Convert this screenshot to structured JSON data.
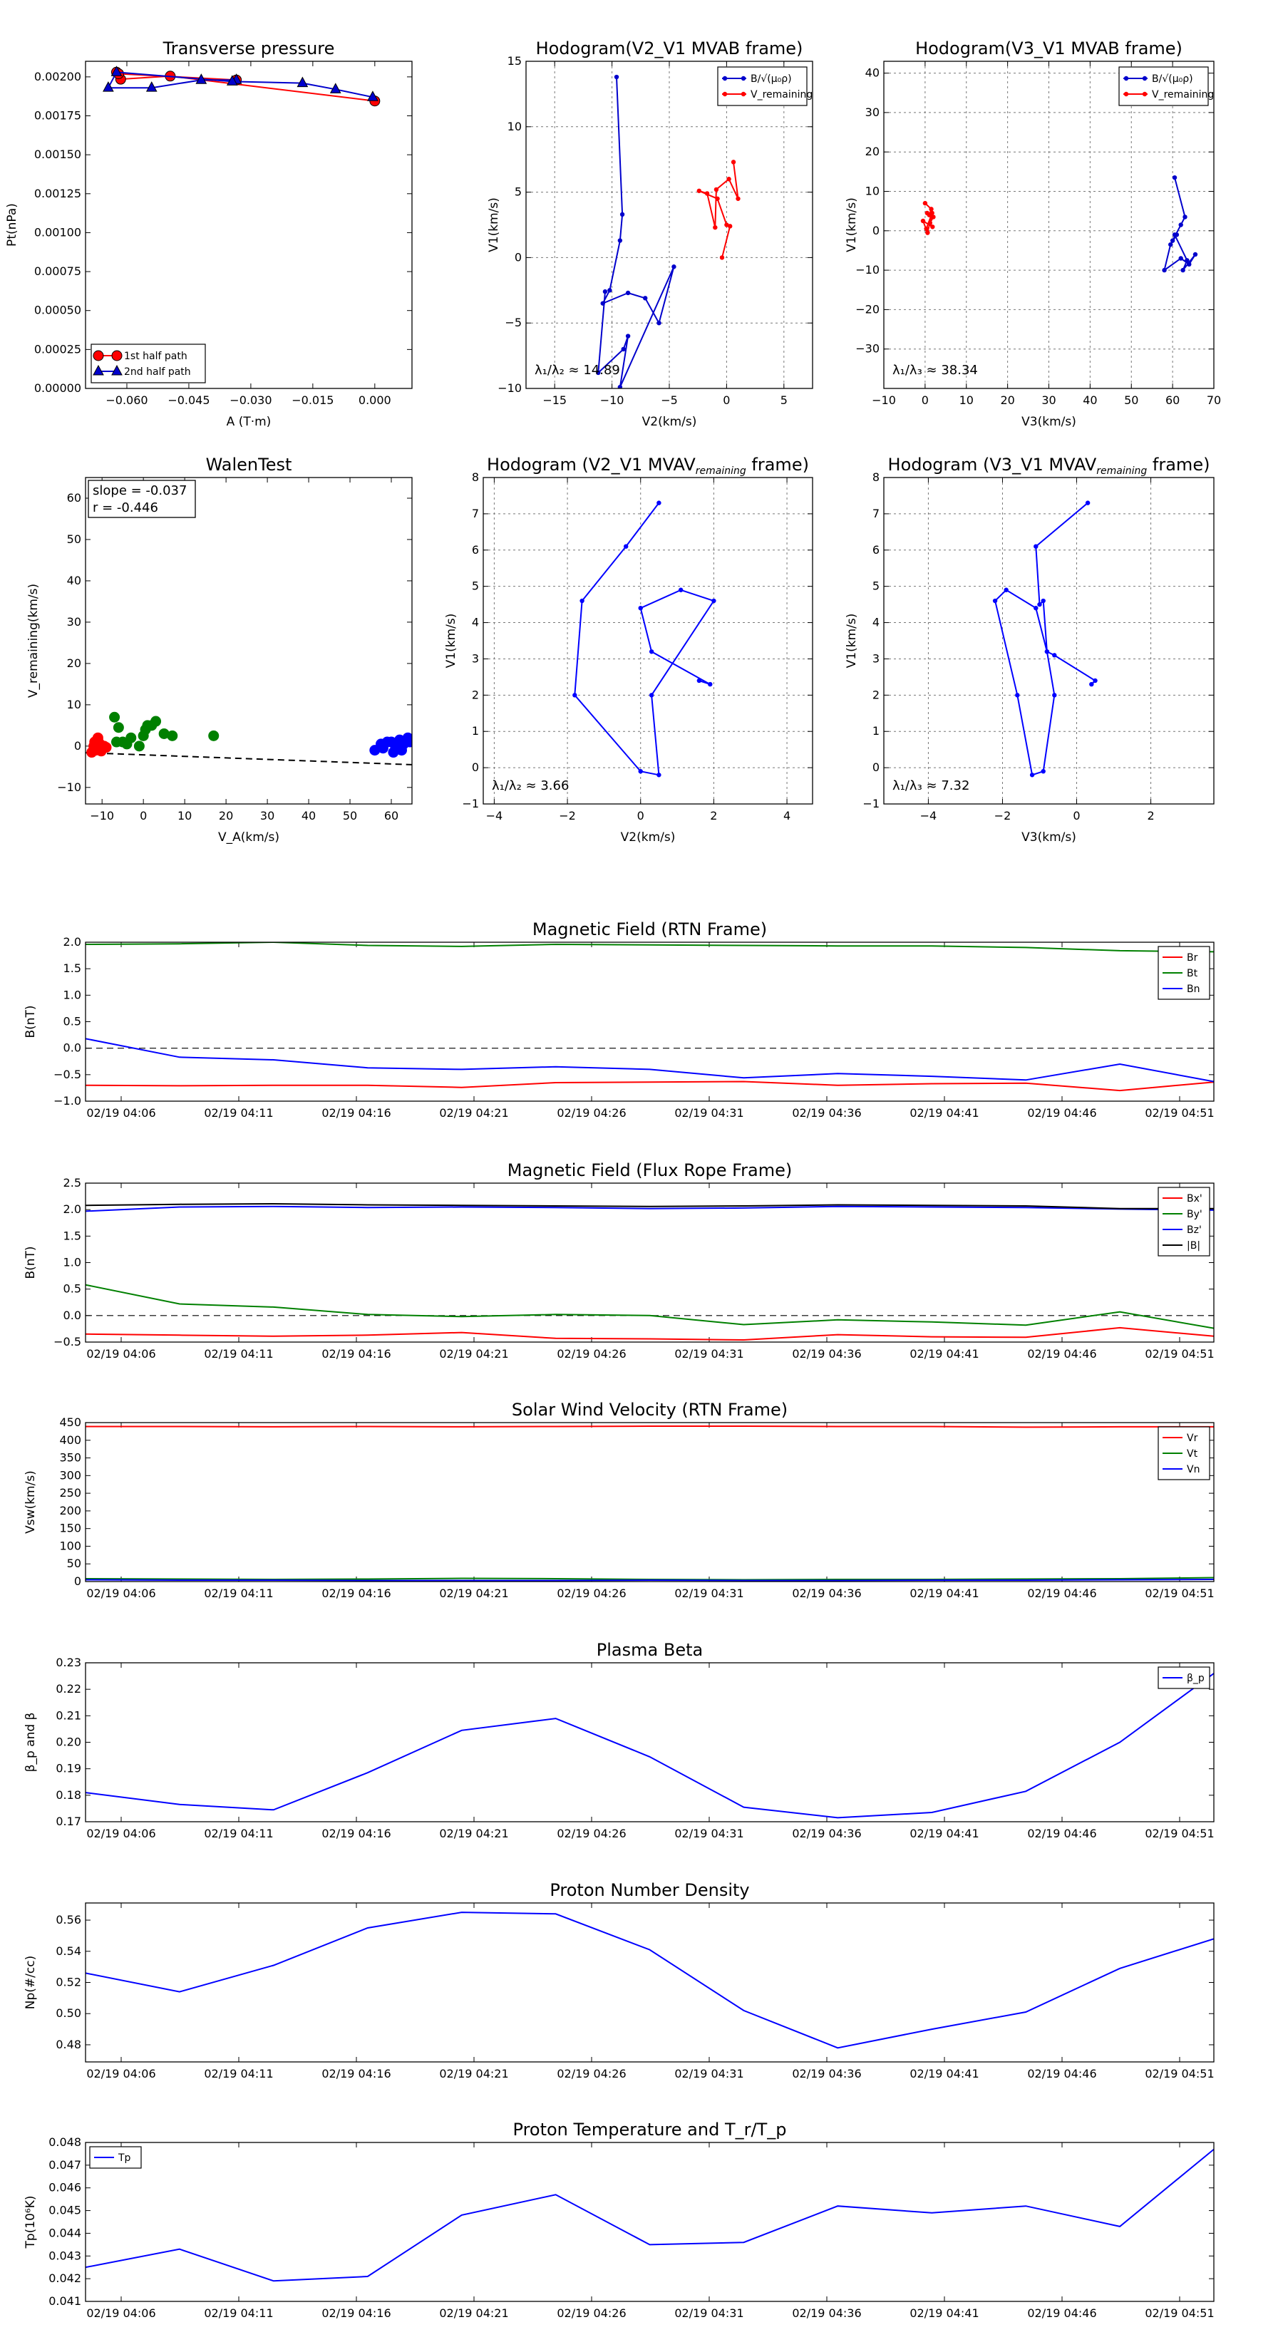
{
  "chart_data": [
    {
      "id": "transverse_pressure",
      "type": "line",
      "title": "Transverse pressure",
      "xlabel": "A (T·m)",
      "ylabel": "Pt(nPa)",
      "xlim": [
        -0.07,
        0.009
      ],
      "ylim": [
        0,
        0.0021
      ],
      "xticks": [
        -0.06,
        -0.045,
        -0.03,
        -0.015,
        0.0
      ],
      "xtick_labels": [
        "−0.060",
        "−0.045",
        "−0.030",
        "−0.015",
        "0.000"
      ],
      "yticks": [
        0,
        0.00025,
        0.0005,
        0.00075,
        0.001,
        0.00125,
        0.0015,
        0.00175,
        0.002
      ],
      "ytick_labels": [
        "0.00000",
        "0.00025",
        "0.00050",
        "0.00075",
        "0.00100",
        "0.00125",
        "0.00150",
        "0.00175",
        "0.00200"
      ],
      "grid": false,
      "legend": "lower-left",
      "series": [
        {
          "name": "1st half path",
          "color": "#ff0000",
          "marker": "circle",
          "x": [
            0.0,
            -0.0495,
            -0.0615,
            -0.0625,
            -0.062,
            -0.0335
          ],
          "y": [
            0.001845,
            0.002005,
            0.001985,
            0.00203,
            0.00202,
            0.00198
          ]
        },
        {
          "name": "2nd half path",
          "color": "#0000cc",
          "marker": "triangle",
          "x": [
            -0.0335,
            -0.042,
            -0.054,
            -0.0645,
            -0.0625,
            -0.0345,
            -0.0175,
            -0.0095,
            -0.0005
          ],
          "y": [
            0.00198,
            0.00198,
            0.00193,
            0.00193,
            0.00203,
            0.00197,
            0.00196,
            0.00192,
            0.00187
          ]
        }
      ]
    },
    {
      "id": "hodogram_v2_v1_mvab",
      "type": "line",
      "title": "Hodogram(V2_V1 MVAB frame)",
      "xlabel": "V2(km/s)",
      "ylabel": "V1(km/s)",
      "xlim": [
        -17.5,
        7.5
      ],
      "ylim": [
        -10,
        15
      ],
      "xticks": [
        -15,
        -10,
        -5,
        0,
        5
      ],
      "xtick_labels": [
        "−15",
        "−10",
        "−5",
        "0",
        "5"
      ],
      "yticks": [
        -10,
        -5,
        0,
        5,
        10,
        15
      ],
      "ytick_labels": [
        "−10",
        "−5",
        "0",
        "5",
        "10",
        "15"
      ],
      "grid": true,
      "legend": "top-right",
      "annotation": "λ₁/λ₂ ≈ 14.89",
      "series": [
        {
          "name": "B/√(μ₀ρ)",
          "color": "#0000cc",
          "marker": "dot",
          "x": [
            -9.6,
            -9.1,
            -9.3,
            -10.2,
            -10.8,
            -8.6,
            -7.1,
            -5.9,
            -4.6,
            -9.3,
            -8.6,
            -9.0,
            -11.2,
            -10.6
          ],
          "y": [
            13.8,
            3.3,
            1.3,
            -2.5,
            -3.5,
            -2.7,
            -3.1,
            -5.0,
            -0.7,
            -9.9,
            -6.0,
            -7.0,
            -8.8,
            -2.6
          ]
        },
        {
          "name": "V_remaining",
          "color": "#ff0000",
          "marker": "dot",
          "x": [
            0.6,
            1.0,
            0.2,
            -0.9,
            -1.0,
            -1.7,
            -2.4,
            -0.8,
            0.0,
            0.3,
            -0.4
          ],
          "y": [
            7.3,
            4.5,
            6.0,
            5.2,
            2.3,
            4.9,
            5.1,
            4.5,
            2.5,
            2.4,
            0.0
          ]
        }
      ]
    },
    {
      "id": "hodogram_v3_v1_mvab",
      "type": "line",
      "title": "Hodogram(V3_V1 MVAB frame)",
      "xlabel": "V3(km/s)",
      "ylabel": "V1(km/s)",
      "xlim": [
        -10,
        70
      ],
      "ylim": [
        -40,
        43
      ],
      "xticks": [
        -10,
        0,
        10,
        20,
        30,
        40,
        50,
        60,
        70
      ],
      "xtick_labels": [
        "−10",
        "0",
        "10",
        "20",
        "30",
        "40",
        "50",
        "60",
        "70"
      ],
      "yticks": [
        -30,
        -20,
        -10,
        0,
        10,
        20,
        30,
        40
      ],
      "ytick_labels": [
        "−30",
        "−20",
        "−10",
        "0",
        "10",
        "20",
        "30",
        "40"
      ],
      "grid": true,
      "legend": "top-right",
      "annotation": "λ₁/λ₃ ≈ 38.34",
      "series": [
        {
          "name": "B/√(μ₀ρ)",
          "color": "#0000cc",
          "marker": "dot",
          "x": [
            60.5,
            63.0,
            62.0,
            60.0,
            61.0,
            59.5,
            58.0,
            62.0,
            64.0,
            65.5,
            62.5,
            63.5,
            60.5
          ],
          "y": [
            13.5,
            3.5,
            1.5,
            -2.5,
            -1.0,
            -3.5,
            -10.0,
            -7.0,
            -8.5,
            -6.0,
            -10.0,
            -7.5,
            -1.0
          ]
        },
        {
          "name": "V_remaining",
          "color": "#ff0000",
          "marker": "dot",
          "x": [
            0.0,
            1.5,
            1.0,
            0.5,
            2.0,
            1.2,
            1.8,
            -0.5,
            0.6,
            1.7,
            0.3
          ],
          "y": [
            7.0,
            5.5,
            4.0,
            4.5,
            3.5,
            2.0,
            1.0,
            2.5,
            -0.5,
            4.5,
            0.5
          ]
        }
      ]
    },
    {
      "id": "walen_test",
      "type": "scatter",
      "title": "WalenTest",
      "xlabel": "V_A(km/s)",
      "ylabel": "V_remaining(km/s)",
      "xlim": [
        -14,
        65
      ],
      "ylim": [
        -14,
        65
      ],
      "xticks": [
        -10,
        0,
        10,
        20,
        30,
        40,
        50,
        60
      ],
      "xtick_labels": [
        "−10",
        "0",
        "10",
        "20",
        "30",
        "40",
        "50",
        "60"
      ],
      "yticks": [
        -10,
        0,
        10,
        20,
        30,
        40,
        50,
        60
      ],
      "ytick_labels": [
        "−10",
        "0",
        "10",
        "20",
        "30",
        "40",
        "50",
        "60"
      ],
      "grid": false,
      "annotation_lines": [
        "slope = -0.037",
        "r = -0.446"
      ],
      "fit_line": {
        "x": [
          -14,
          65
        ],
        "y": [
          -1.6,
          -4.5
        ],
        "style": "dashed"
      },
      "series": [
        {
          "color": "#ff0000",
          "x": [
            -12.0,
            -11.0,
            -10.5,
            -11.5,
            -10.0,
            -9.5,
            -12.5,
            -11.0,
            -10.2,
            -9.0,
            -11.8,
            -10.7
          ],
          "y": [
            0.0,
            1.5,
            0.5,
            -1.0,
            -0.5,
            0.0,
            -1.5,
            2.0,
            -1.2,
            -0.3,
            1.0,
            -0.8
          ]
        },
        {
          "color": "#008000",
          "x": [
            -7.0,
            -6.0,
            -4.0,
            -3.0,
            -1.0,
            0.0,
            1.0,
            2.0,
            3.0,
            5.0,
            7.0,
            17.0,
            -6.5,
            -5.0,
            0.5
          ],
          "y": [
            7.0,
            4.5,
            0.5,
            2.0,
            0.0,
            2.5,
            5.0,
            5.0,
            6.0,
            3.0,
            2.5,
            2.5,
            1.0,
            1.0,
            4.0
          ]
        },
        {
          "color": "#0000ff",
          "x": [
            56.0,
            57.5,
            59.0,
            60.5,
            61.0,
            62.0,
            63.0,
            64.0,
            58.0,
            60.0,
            62.5,
            64.5
          ],
          "y": [
            -1.0,
            0.5,
            1.0,
            -1.5,
            0.0,
            1.5,
            0.5,
            2.0,
            -0.5,
            1.0,
            -1.0,
            1.0
          ]
        }
      ]
    },
    {
      "id": "hodogram_v2_v1_mvav",
      "type": "line",
      "title": "Hodogram (V2_V1 MVAV",
      "title_sub": "remaining",
      "title_end": " frame)",
      "xlabel": "V2(km/s)",
      "ylabel": "V1(km/s)",
      "xlim": [
        -4.3,
        4.7
      ],
      "ylim": [
        -1,
        8
      ],
      "xticks": [
        -4,
        -2,
        0,
        2,
        4
      ],
      "xtick_labels": [
        "−4",
        "−2",
        "0",
        "2",
        "4"
      ],
      "yticks": [
        -1,
        0,
        1,
        2,
        3,
        4,
        5,
        6,
        7,
        8
      ],
      "ytick_labels": [
        "−1",
        "0",
        "1",
        "2",
        "3",
        "4",
        "5",
        "6",
        "7",
        "8"
      ],
      "grid": true,
      "annotation": "λ₁/λ₂ ≈ 3.66",
      "series": [
        {
          "color": "#0000ff",
          "marker": "dot",
          "x": [
            0.5,
            -0.4,
            -1.6,
            -1.8,
            0.0,
            0.5,
            0.3,
            2.0,
            1.1,
            0.0,
            0.3,
            1.9,
            1.6
          ],
          "y": [
            7.3,
            6.1,
            4.6,
            2.0,
            -0.1,
            -0.2,
            2.0,
            4.6,
            4.9,
            4.4,
            3.2,
            2.3,
            2.4
          ]
        }
      ]
    },
    {
      "id": "hodogram_v3_v1_mvav",
      "type": "line",
      "title": "Hodogram (V3_V1 MVAV",
      "title_sub": "remaining",
      "title_end": " frame)",
      "xlabel": "V3(km/s)",
      "ylabel": "V1(km/s)",
      "xlim": [
        -5.2,
        3.7
      ],
      "ylim": [
        -1,
        8
      ],
      "xticks": [
        -4,
        -2,
        0,
        2
      ],
      "xtick_labels": [
        "−4",
        "−2",
        "0",
        "2"
      ],
      "yticks": [
        -1,
        0,
        1,
        2,
        3,
        4,
        5,
        6,
        7,
        8
      ],
      "ytick_labels": [
        "−1",
        "0",
        "1",
        "2",
        "3",
        "4",
        "5",
        "6",
        "7",
        "8"
      ],
      "grid": true,
      "annotation": "λ₁/λ₃ ≈ 7.32",
      "series": [
        {
          "color": "#0000ff",
          "marker": "dot",
          "x": [
            0.3,
            -1.1,
            -1.0,
            -0.9,
            -0.8,
            -0.6,
            -0.9,
            -1.2,
            -1.6,
            -2.2,
            -1.9,
            -1.1,
            -0.8,
            -0.6,
            0.5,
            0.4
          ],
          "y": [
            7.3,
            6.1,
            4.5,
            4.6,
            3.2,
            2.0,
            -0.1,
            -0.2,
            2.0,
            4.6,
            4.9,
            4.4,
            3.2,
            3.1,
            2.4,
            2.3
          ]
        }
      ]
    },
    {
      "id": "magnetic_field_rtn",
      "type": "line",
      "title": "Magnetic Field (RTN Frame)",
      "ylabel": "B(nT)",
      "ylim": [
        -1.0,
        2.0
      ],
      "yticks": [
        -1.0,
        -0.5,
        0.0,
        0.5,
        1.0,
        1.5,
        2.0
      ],
      "ytick_labels": [
        "−1.0",
        "−0.5",
        "0.0",
        "0.5",
        "1.0",
        "1.5",
        "2.0"
      ],
      "legend": "top-right",
      "series": [
        {
          "name": "Br",
          "color": "#ff0000",
          "values": [
            -0.7,
            -0.71,
            -0.7,
            -0.7,
            -0.74,
            -0.65,
            -0.64,
            -0.63,
            -0.7,
            -0.67,
            -0.66,
            -0.8,
            -0.64
          ]
        },
        {
          "name": "Bt",
          "color": "#008000",
          "values": [
            1.96,
            1.97,
            2.0,
            1.94,
            1.92,
            1.96,
            1.95,
            1.94,
            1.93,
            1.93,
            1.9,
            1.84,
            1.82
          ]
        },
        {
          "name": "Bn",
          "color": "#0000ff",
          "values": [
            0.18,
            -0.17,
            -0.22,
            -0.37,
            -0.4,
            -0.35,
            -0.4,
            -0.56,
            -0.48,
            -0.53,
            -0.6,
            -0.3,
            -0.63
          ]
        }
      ],
      "zero_line": true
    },
    {
      "id": "magnetic_field_flux_rope",
      "type": "line",
      "title": "Magnetic Field (Flux Rope Frame)",
      "ylabel": "B(nT)",
      "ylim": [
        -0.5,
        2.5
      ],
      "yticks": [
        -0.5,
        0.0,
        0.5,
        1.0,
        1.5,
        2.0,
        2.5
      ],
      "ytick_labels": [
        "−0.5",
        "0.0",
        "0.5",
        "1.0",
        "1.5",
        "2.0",
        "2.5"
      ],
      "legend": "top-right",
      "series": [
        {
          "name": "Bx'",
          "color": "#ff0000",
          "values": [
            -0.35,
            -0.37,
            -0.39,
            -0.37,
            -0.32,
            -0.43,
            -0.44,
            -0.46,
            -0.36,
            -0.4,
            -0.41,
            -0.23,
            -0.39
          ]
        },
        {
          "name": "By'",
          "color": "#008000",
          "values": [
            0.58,
            0.22,
            0.16,
            0.02,
            -0.02,
            0.02,
            0.0,
            -0.17,
            -0.08,
            -0.12,
            -0.18,
            0.07,
            -0.24
          ]
        },
        {
          "name": "Bz'",
          "color": "#0000ff",
          "values": [
            1.97,
            2.05,
            2.06,
            2.04,
            2.05,
            2.04,
            2.02,
            2.03,
            2.06,
            2.05,
            2.04,
            2.01,
            1.99
          ]
        },
        {
          "name": "|B|",
          "color": "#000000",
          "values": [
            2.08,
            2.1,
            2.11,
            2.09,
            2.08,
            2.07,
            2.06,
            2.07,
            2.09,
            2.08,
            2.07,
            2.02,
            2.02
          ]
        }
      ],
      "zero_line": true
    },
    {
      "id": "solar_wind_velocity",
      "type": "line",
      "title": "Solar Wind Velocity (RTN Frame)",
      "ylabel": "Vsw(km/s)",
      "ylim": [
        0,
        450
      ],
      "yticks": [
        0,
        50,
        100,
        150,
        200,
        250,
        300,
        350,
        400,
        450
      ],
      "ytick_labels": [
        "0",
        "50",
        "100",
        "150",
        "200",
        "250",
        "300",
        "350",
        "400",
        "450"
      ],
      "legend": "top-right",
      "series": [
        {
          "name": "Vr",
          "color": "#ff0000",
          "values": [
            439,
            439,
            438,
            439,
            438,
            439,
            440,
            440,
            439,
            439,
            437,
            438,
            438
          ]
        },
        {
          "name": "Vt",
          "color": "#008000",
          "values": [
            8,
            7,
            6,
            7,
            9,
            8,
            6,
            5,
            6,
            6,
            7,
            8,
            11
          ]
        },
        {
          "name": "Vn",
          "color": "#0000ff",
          "values": [
            5,
            4,
            4,
            3,
            3,
            3,
            4,
            3,
            3,
            4,
            4,
            5,
            6
          ]
        }
      ]
    },
    {
      "id": "plasma_beta",
      "type": "line",
      "title": "Plasma Beta",
      "ylabel": "β_p and β",
      "ylim": [
        0.17,
        0.23
      ],
      "yticks": [
        0.17,
        0.18,
        0.19,
        0.2,
        0.21,
        0.22,
        0.23
      ],
      "ytick_labels": [
        "0.17",
        "0.18",
        "0.19",
        "0.20",
        "0.21",
        "0.22",
        "0.23"
      ],
      "legend": "top-right",
      "series": [
        {
          "name": "β_p",
          "color": "#0000ff",
          "values": [
            0.181,
            0.1765,
            0.1745,
            0.1885,
            0.2045,
            0.209,
            0.1945,
            0.1755,
            0.1715,
            0.1735,
            0.1815,
            0.2,
            0.226
          ]
        }
      ]
    },
    {
      "id": "proton_number_density",
      "type": "line",
      "title": "Proton Number Density",
      "ylabel": "Np(#/cc)",
      "ylim": [
        0.469,
        0.571
      ],
      "yticks": [
        0.48,
        0.5,
        0.52,
        0.54,
        0.56
      ],
      "ytick_labels": [
        "0.48",
        "0.50",
        "0.52",
        "0.54",
        "0.56"
      ],
      "series": [
        {
          "color": "#0000ff",
          "values": [
            0.526,
            0.514,
            0.531,
            0.555,
            0.565,
            0.564,
            0.541,
            0.502,
            0.478,
            0.49,
            0.501,
            0.529,
            0.548
          ]
        }
      ]
    },
    {
      "id": "proton_temperature",
      "type": "line",
      "title": "Proton Temperature and T_r/T_p",
      "ylabel": "Tp(10⁶K)",
      "ylim": [
        0.041,
        0.048
      ],
      "yticks": [
        0.041,
        0.042,
        0.043,
        0.044,
        0.045,
        0.046,
        0.047,
        0.048
      ],
      "ytick_labels": [
        "0.041",
        "0.042",
        "0.043",
        "0.044",
        "0.045",
        "0.046",
        "0.047",
        "0.048"
      ],
      "legend": "top-left",
      "series": [
        {
          "name": "Tp",
          "color": "#0000ff",
          "values": [
            0.0425,
            0.0433,
            0.0419,
            0.0421,
            0.0448,
            0.0457,
            0.0435,
            0.0436,
            0.0452,
            0.0449,
            0.0452,
            0.0443,
            0.0477
          ]
        }
      ]
    }
  ],
  "time_axis": {
    "tick_labels": [
      "02/19 04:06",
      "02/19 04:11",
      "02/19 04:16",
      "02/19 04:21",
      "02/19 04:26",
      "02/19 04:31",
      "02/19 04:36",
      "02/19 04:41",
      "02/19 04:46",
      "02/19 04:51"
    ]
  }
}
